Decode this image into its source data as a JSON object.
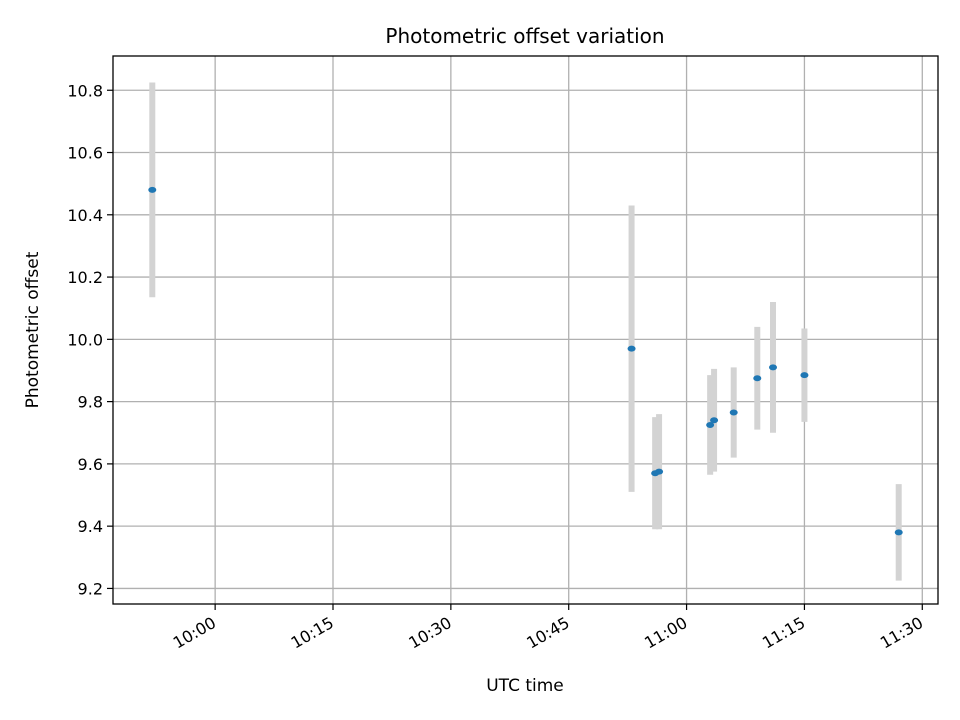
{
  "chart_data": {
    "type": "scatter",
    "title": "Photometric offset variation",
    "xlabel": "UTC time",
    "ylabel": "Photometric offset",
    "x_ticks": [
      "10:00",
      "10:15",
      "10:30",
      "10:45",
      "11:00",
      "11:15",
      "11:30"
    ],
    "y_ticks": [
      "9.2",
      "9.4",
      "9.6",
      "9.8",
      "10.0",
      "10.2",
      "10.4",
      "10.6",
      "10.8"
    ],
    "xlim": [
      "09:47",
      "11:32"
    ],
    "ylim": [
      9.15,
      10.91
    ],
    "grid": true,
    "marker_color": "#1f77b4",
    "errorbar_color": "#d3d3d3",
    "points": [
      {
        "x": "09:52",
        "y": 10.48,
        "err": 0.345
      },
      {
        "x": "10:53",
        "y": 9.97,
        "err": 0.46
      },
      {
        "x": "10:56",
        "y": 9.57,
        "err": 0.18
      },
      {
        "x": "10:56.5",
        "y": 9.575,
        "err": 0.185
      },
      {
        "x": "11:03",
        "y": 9.725,
        "err": 0.16
      },
      {
        "x": "11:03.5",
        "y": 9.74,
        "err": 0.165
      },
      {
        "x": "11:06",
        "y": 9.765,
        "err": 0.145
      },
      {
        "x": "11:09",
        "y": 9.875,
        "err": 0.165
      },
      {
        "x": "11:11",
        "y": 9.91,
        "err": 0.21
      },
      {
        "x": "11:15",
        "y": 9.885,
        "err": 0.15
      },
      {
        "x": "11:27",
        "y": 9.38,
        "err": 0.155
      }
    ]
  }
}
